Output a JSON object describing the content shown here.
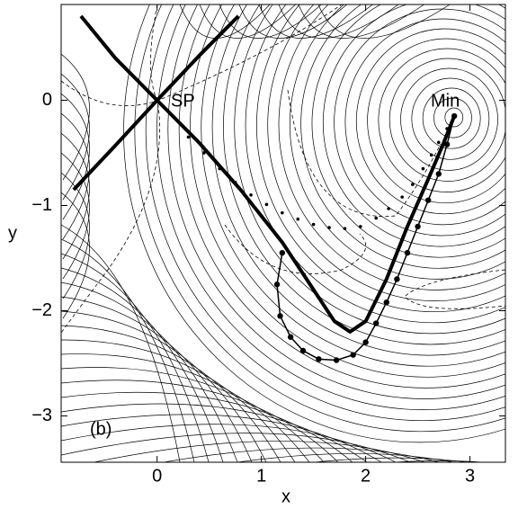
{
  "chart_data": {
    "type": "line",
    "x_label": "x",
    "y_label": "y",
    "annotations": [
      "SP",
      "Min",
      "(b)"
    ],
    "xlim": [
      -0.92,
      3.34
    ],
    "ylim": [
      -3.44,
      0.91
    ],
    "xticks": [
      0,
      1,
      2,
      3
    ],
    "yticks": [
      {
        "value": -3,
        "label": "−3"
      },
      {
        "value": -2,
        "label": "−2"
      },
      {
        "value": -1,
        "label": "−1"
      },
      0
    ],
    "series": [
      {
        "color": "#000000",
        "line": "thick",
        "marker": "none",
        "x": [
          -0.73,
          -0.4,
          0,
          0.4,
          0.8,
          1.2,
          1.5,
          1.7,
          1.85,
          2.0,
          2.2,
          2.4,
          2.6,
          2.75,
          2.85
        ],
        "y": [
          0.8,
          0.4,
          0,
          -0.4,
          -0.85,
          -1.35,
          -1.8,
          -2.1,
          -2.2,
          -2.1,
          -1.7,
          -1.2,
          -0.75,
          -0.4,
          -0.15
        ]
      },
      {
        "color": "#000000",
        "line": "thick",
        "marker": "none",
        "x": [
          -0.8,
          -0.4,
          0,
          0.4,
          0.78
        ],
        "y": [
          -0.85,
          -0.43,
          0,
          0.42,
          0.8
        ]
      },
      {
        "color": "#000000",
        "line": "none",
        "marker": "small",
        "x": [
          0.3,
          0.45,
          0.6,
          0.75,
          0.9,
          1.05,
          1.2,
          1.35,
          1.5,
          1.65,
          1.8,
          1.95,
          2.1,
          2.22,
          2.35,
          2.45,
          2.55,
          2.63,
          2.7,
          2.78
        ],
        "y": [
          -0.35,
          -0.5,
          -0.65,
          -0.78,
          -0.9,
          -0.99,
          -1.07,
          -1.13,
          -1.18,
          -1.21,
          -1.22,
          -1.2,
          -1.12,
          -1.03,
          -0.92,
          -0.8,
          -0.65,
          -0.52,
          -0.4,
          -0.27
        ]
      },
      {
        "color": "#000000",
        "line": "thin",
        "marker": "large",
        "x": [
          1.2,
          1.15,
          1.18,
          1.28,
          1.4,
          1.55,
          1.72,
          1.88,
          2.0,
          2.1,
          2.2,
          2.3,
          2.4,
          2.5,
          2.6,
          2.7,
          2.78,
          2.85
        ],
        "y": [
          -1.45,
          -1.75,
          -2.05,
          -2.25,
          -2.38,
          -2.46,
          -2.47,
          -2.42,
          -2.3,
          -2.12,
          -1.92,
          -1.7,
          -1.45,
          -1.2,
          -0.95,
          -0.7,
          -0.42,
          -0.15
        ]
      }
    ]
  }
}
